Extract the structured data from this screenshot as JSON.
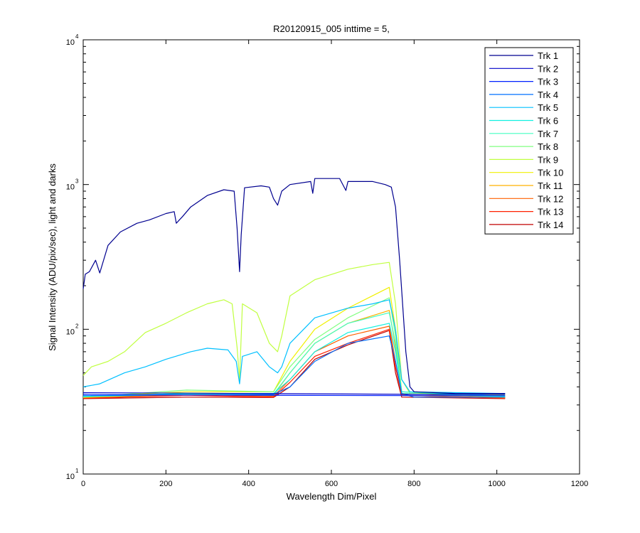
{
  "chart_data": {
    "type": "line",
    "title": "R20120915_005 inttime = 5,",
    "xlabel": "Wavelength Dim/Pixel",
    "ylabel": "Signal Intensity (ADU/pix/sec), light and darks",
    "xlim": [
      0,
      1200
    ],
    "ylim": [
      10,
      10000
    ],
    "yscale": "log",
    "x_ticks": [
      0,
      200,
      400,
      600,
      800,
      1000,
      1200
    ],
    "y_ticks": [
      {
        "base": "10",
        "exp": "1",
        "value": 10
      },
      {
        "base": "10",
        "exp": "2",
        "value": 100
      },
      {
        "base": "10",
        "exp": "3",
        "value": 1000
      },
      {
        "base": "10",
        "exp": "4",
        "value": 10000
      }
    ],
    "grid": false,
    "legend_position": "top-right",
    "series": [
      {
        "name": "Trk 1",
        "color": "#00008f",
        "points": [
          [
            0,
            190
          ],
          [
            5,
            240
          ],
          [
            15,
            250
          ],
          [
            30,
            300
          ],
          [
            40,
            245
          ],
          [
            60,
            380
          ],
          [
            90,
            470
          ],
          [
            130,
            540
          ],
          [
            160,
            570
          ],
          [
            200,
            630
          ],
          [
            220,
            650
          ],
          [
            225,
            540
          ],
          [
            240,
            600
          ],
          [
            260,
            700
          ],
          [
            300,
            840
          ],
          [
            340,
            920
          ],
          [
            365,
            900
          ],
          [
            372,
            500
          ],
          [
            378,
            250
          ],
          [
            382,
            450
          ],
          [
            390,
            950
          ],
          [
            430,
            980
          ],
          [
            450,
            960
          ],
          [
            460,
            800
          ],
          [
            470,
            720
          ],
          [
            480,
            900
          ],
          [
            500,
            1000
          ],
          [
            550,
            1050
          ],
          [
            555,
            870
          ],
          [
            560,
            1100
          ],
          [
            620,
            1100
          ],
          [
            635,
            910
          ],
          [
            640,
            1050
          ],
          [
            700,
            1050
          ],
          [
            730,
            1000
          ],
          [
            745,
            960
          ],
          [
            755,
            700
          ],
          [
            765,
            300
          ],
          [
            780,
            70
          ],
          [
            790,
            40
          ],
          [
            800,
            37
          ],
          [
            900,
            36
          ],
          [
            1020,
            36
          ]
        ]
      },
      {
        "name": "Trk 2",
        "color": "#0000c8",
        "points": [
          [
            0,
            36.5
          ],
          [
            400,
            36
          ],
          [
            800,
            35.5
          ],
          [
            1020,
            35.5
          ]
        ]
      },
      {
        "name": "Trk 3",
        "color": "#0020ff",
        "points": [
          [
            0,
            35.5
          ],
          [
            400,
            35
          ],
          [
            800,
            34.8
          ],
          [
            1020,
            34.8
          ]
        ]
      },
      {
        "name": "Trk 4",
        "color": "#0070ff",
        "points": [
          [
            0,
            34.8
          ],
          [
            460,
            35.5
          ],
          [
            500,
            40
          ],
          [
            560,
            60
          ],
          [
            640,
            80
          ],
          [
            740,
            90
          ],
          [
            755,
            60
          ],
          [
            770,
            36
          ],
          [
            800,
            34
          ],
          [
            1020,
            34
          ]
        ]
      },
      {
        "name": "Trk 5",
        "color": "#00c0ff",
        "points": [
          [
            0,
            40
          ],
          [
            40,
            42
          ],
          [
            100,
            50
          ],
          [
            150,
            55
          ],
          [
            200,
            62
          ],
          [
            260,
            70
          ],
          [
            300,
            74
          ],
          [
            350,
            72
          ],
          [
            370,
            60
          ],
          [
            378,
            42
          ],
          [
            385,
            65
          ],
          [
            420,
            70
          ],
          [
            450,
            55
          ],
          [
            470,
            50
          ],
          [
            480,
            55
          ],
          [
            500,
            80
          ],
          [
            560,
            120
          ],
          [
            640,
            140
          ],
          [
            700,
            150
          ],
          [
            740,
            160
          ],
          [
            755,
            100
          ],
          [
            770,
            45
          ],
          [
            790,
            37
          ],
          [
            1020,
            36
          ]
        ]
      },
      {
        "name": "Trk 6",
        "color": "#10f0e0",
        "points": [
          [
            0,
            34.5
          ],
          [
            250,
            36
          ],
          [
            460,
            36
          ],
          [
            500,
            45
          ],
          [
            560,
            70
          ],
          [
            640,
            95
          ],
          [
            740,
            110
          ],
          [
            755,
            70
          ],
          [
            770,
            37
          ],
          [
            1020,
            34.5
          ]
        ]
      },
      {
        "name": "Trk 7",
        "color": "#40ffc0",
        "points": [
          [
            0,
            34.2
          ],
          [
            250,
            35.5
          ],
          [
            460,
            35.5
          ],
          [
            500,
            50
          ],
          [
            560,
            80
          ],
          [
            640,
            110
          ],
          [
            740,
            130
          ],
          [
            755,
            80
          ],
          [
            770,
            36
          ],
          [
            1020,
            34.2
          ]
        ]
      },
      {
        "name": "Trk 8",
        "color": "#80ff80",
        "points": [
          [
            0,
            34
          ],
          [
            250,
            38
          ],
          [
            460,
            37
          ],
          [
            500,
            55
          ],
          [
            560,
            85
          ],
          [
            640,
            120
          ],
          [
            740,
            165
          ],
          [
            755,
            90
          ],
          [
            770,
            37
          ],
          [
            1020,
            34
          ]
        ]
      },
      {
        "name": "Trk 9",
        "color": "#c0ff40",
        "points": [
          [
            0,
            48
          ],
          [
            20,
            55
          ],
          [
            60,
            60
          ],
          [
            100,
            70
          ],
          [
            150,
            95
          ],
          [
            200,
            110
          ],
          [
            250,
            130
          ],
          [
            300,
            150
          ],
          [
            340,
            160
          ],
          [
            360,
            150
          ],
          [
            372,
            75
          ],
          [
            378,
            45
          ],
          [
            385,
            150
          ],
          [
            420,
            130
          ],
          [
            450,
            80
          ],
          [
            470,
            70
          ],
          [
            480,
            90
          ],
          [
            500,
            170
          ],
          [
            560,
            220
          ],
          [
            640,
            260
          ],
          [
            700,
            280
          ],
          [
            740,
            290
          ],
          [
            755,
            150
          ],
          [
            770,
            45
          ],
          [
            790,
            36
          ],
          [
            1020,
            35
          ]
        ]
      },
      {
        "name": "Trk 10",
        "color": "#f0f000",
        "points": [
          [
            0,
            34.2
          ],
          [
            250,
            37
          ],
          [
            460,
            37
          ],
          [
            500,
            60
          ],
          [
            560,
            100
          ],
          [
            640,
            140
          ],
          [
            740,
            195
          ],
          [
            755,
            100
          ],
          [
            770,
            37
          ],
          [
            1020,
            34
          ]
        ]
      },
      {
        "name": "Trk 11",
        "color": "#ffb000",
        "points": [
          [
            0,
            33.8
          ],
          [
            250,
            36
          ],
          [
            460,
            35
          ],
          [
            500,
            50
          ],
          [
            560,
            80
          ],
          [
            640,
            110
          ],
          [
            740,
            135
          ],
          [
            755,
            75
          ],
          [
            770,
            36
          ],
          [
            1020,
            33.8
          ]
        ]
      },
      {
        "name": "Trk 12",
        "color": "#ff6000",
        "points": [
          [
            0,
            33.6
          ],
          [
            250,
            35.5
          ],
          [
            460,
            34.5
          ],
          [
            500,
            45
          ],
          [
            560,
            70
          ],
          [
            640,
            90
          ],
          [
            740,
            105
          ],
          [
            755,
            60
          ],
          [
            770,
            35
          ],
          [
            1020,
            33.6
          ]
        ]
      },
      {
        "name": "Trk 13",
        "color": "#ff2000",
        "points": [
          [
            0,
            33.4
          ],
          [
            250,
            35
          ],
          [
            460,
            34
          ],
          [
            500,
            43
          ],
          [
            560,
            65
          ],
          [
            640,
            80
          ],
          [
            740,
            100
          ],
          [
            755,
            55
          ],
          [
            770,
            35
          ],
          [
            1020,
            33.4
          ]
        ]
      },
      {
        "name": "Trk 14",
        "color": "#c00000",
        "points": [
          [
            0,
            33.2
          ],
          [
            250,
            34
          ],
          [
            460,
            33.8
          ],
          [
            500,
            40
          ],
          [
            560,
            62
          ],
          [
            640,
            78
          ],
          [
            740,
            98
          ],
          [
            755,
            50
          ],
          [
            770,
            34
          ],
          [
            1020,
            33.2
          ]
        ]
      }
    ]
  }
}
